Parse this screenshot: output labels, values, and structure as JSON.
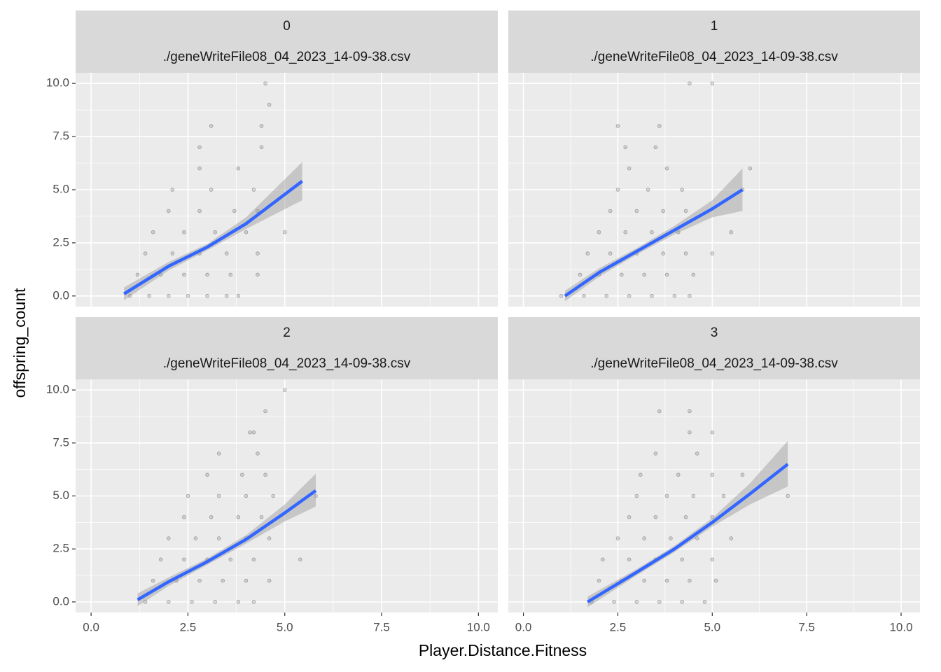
{
  "chart_data": [
    {
      "type": "scatter",
      "title": "0",
      "subtitle": "./geneWriteFile08_04_2023_14-09-38.csv",
      "xlabel": "Player.Distance.Fitness",
      "ylabel": "offspring_count",
      "xlim": [
        -0.4,
        10.5
      ],
      "ylim": [
        -0.5,
        10.5
      ],
      "xticks": [
        {
          "value": 0,
          "label": "0.0"
        },
        {
          "value": 2.5,
          "label": "2.5"
        },
        {
          "value": 5,
          "label": "5.0"
        },
        {
          "value": 7.5,
          "label": "7.5"
        },
        {
          "value": 10,
          "label": "10.0"
        }
      ],
      "yticks": [
        {
          "value": 0,
          "label": "0.0"
        },
        {
          "value": 2.5,
          "label": "2.5"
        },
        {
          "value": 5,
          "label": "5.0"
        },
        {
          "value": 7.5,
          "label": "7.5"
        },
        {
          "value": 10,
          "label": "10.0"
        }
      ],
      "grid": true,
      "points": {
        "color": "#000000",
        "x": [
          1.0,
          1.5,
          2.0,
          2.5,
          3.0,
          3.5,
          3.8,
          1.2,
          1.8,
          2.4,
          3.0,
          3.6,
          4.3,
          1.4,
          2.1,
          2.8,
          3.5,
          4.3,
          1.6,
          2.4,
          3.2,
          4.0,
          5.0,
          2.0,
          2.8,
          3.7,
          4.3,
          2.1,
          3.1,
          4.2,
          2.8,
          3.8,
          2.8,
          4.4,
          3.1,
          4.4,
          4.6,
          4.5
        ],
        "y": [
          0,
          0,
          0,
          0,
          0,
          0,
          0,
          1,
          1,
          1,
          1,
          1,
          1,
          2,
          2,
          2,
          2,
          2,
          3,
          3,
          3,
          3,
          3,
          4,
          4,
          4,
          4,
          5,
          5,
          5,
          6,
          6,
          7,
          7,
          8,
          8,
          9,
          10
        ]
      },
      "fit": {
        "color": "#3366ff",
        "band_color": "#999999",
        "x": [
          0.85,
          2,
          3,
          4,
          5.45
        ],
        "y": [
          0.1,
          1.4,
          2.3,
          3.4,
          5.4
        ],
        "lower": [
          -0.2,
          1.2,
          2.15,
          3.15,
          4.5
        ],
        "upper": [
          0.4,
          1.6,
          2.45,
          3.7,
          6.3
        ]
      }
    },
    {
      "type": "scatter",
      "title": "1",
      "subtitle": "./geneWriteFile08_04_2023_14-09-38.csv",
      "xlim": [
        -0.4,
        10.5
      ],
      "ylim": [
        -0.5,
        10.5
      ],
      "xticks": [
        {
          "value": 0,
          "label": "0.0"
        },
        {
          "value": 2.5,
          "label": "2.5"
        },
        {
          "value": 5,
          "label": "5.0"
        },
        {
          "value": 7.5,
          "label": "7.5"
        },
        {
          "value": 10,
          "label": "10.0"
        }
      ],
      "yticks": [
        {
          "value": 0,
          "label": "0.0"
        },
        {
          "value": 2.5,
          "label": "2.5"
        },
        {
          "value": 5,
          "label": "5.0"
        },
        {
          "value": 7.5,
          "label": "7.5"
        },
        {
          "value": 10,
          "label": "10.0"
        }
      ],
      "grid": true,
      "points": {
        "color": "#000000",
        "x": [
          1.0,
          1.6,
          2.2,
          2.8,
          3.4,
          4.0,
          4.4,
          1.5,
          2.0,
          2.6,
          3.2,
          3.8,
          4.5,
          1.7,
          2.3,
          3.0,
          3.7,
          4.3,
          5.0,
          2.0,
          2.7,
          3.4,
          4.1,
          5.5,
          2.3,
          3.0,
          3.7,
          4.3,
          2.5,
          3.3,
          4.2,
          5.8,
          2.8,
          3.8,
          6.0,
          2.7,
          3.5,
          2.5,
          3.6,
          4.4,
          5.0
        ],
        "y": [
          0,
          0,
          0,
          0,
          0,
          0,
          0,
          1,
          1,
          1,
          1,
          1,
          1,
          2,
          2,
          2,
          2,
          2,
          2,
          3,
          3,
          3,
          3,
          3,
          4,
          4,
          4,
          4,
          5,
          5,
          5,
          5,
          6,
          6,
          6,
          7,
          7,
          8,
          8,
          10,
          10
        ]
      },
      "fit": {
        "color": "#3366ff",
        "band_color": "#999999",
        "x": [
          1.1,
          2,
          3,
          4,
          5,
          5.8
        ],
        "y": [
          0,
          1.1,
          2.1,
          3.1,
          4.1,
          5.0
        ],
        "lower": [
          -0.25,
          0.9,
          1.95,
          2.9,
          3.7,
          4.0
        ],
        "upper": [
          0.25,
          1.3,
          2.25,
          3.3,
          4.5,
          6.0
        ]
      }
    },
    {
      "type": "scatter",
      "title": "2",
      "subtitle": "./geneWriteFile08_04_2023_14-09-38.csv",
      "xlim": [
        -0.4,
        10.5
      ],
      "ylim": [
        -0.5,
        10.5
      ],
      "xticks": [
        {
          "value": 0,
          "label": "0.0"
        },
        {
          "value": 2.5,
          "label": "2.5"
        },
        {
          "value": 5,
          "label": "5.0"
        },
        {
          "value": 7.5,
          "label": "7.5"
        },
        {
          "value": 10,
          "label": "10.0"
        }
      ],
      "yticks": [
        {
          "value": 0,
          "label": "0.0"
        },
        {
          "value": 2.5,
          "label": "2.5"
        },
        {
          "value": 5,
          "label": "5.0"
        },
        {
          "value": 7.5,
          "label": "7.5"
        },
        {
          "value": 10,
          "label": "10.0"
        }
      ],
      "grid": true,
      "points": {
        "color": "#000000",
        "x": [
          1.4,
          2.0,
          2.6,
          3.2,
          3.8,
          4.2,
          1.6,
          2.2,
          2.8,
          3.4,
          4.0,
          4.6,
          1.8,
          2.4,
          3.0,
          3.6,
          4.2,
          5.4,
          2.0,
          2.7,
          3.3,
          4.0,
          4.6,
          2.4,
          3.1,
          3.8,
          4.4,
          2.5,
          3.3,
          4.0,
          4.7,
          5.8,
          3.0,
          3.9,
          4.5,
          3.3,
          4.3,
          4.1,
          4.2,
          4.5,
          5.0
        ],
        "y": [
          0,
          0,
          0,
          0,
          0,
          0,
          1,
          1,
          1,
          1,
          1,
          1,
          2,
          2,
          2,
          2,
          2,
          2,
          3,
          3,
          3,
          3,
          3,
          4,
          4,
          4,
          4,
          5,
          5,
          5,
          5,
          5,
          6,
          6,
          6,
          7,
          7,
          8,
          8,
          9,
          10
        ]
      },
      "fit": {
        "color": "#3366ff",
        "band_color": "#999999",
        "x": [
          1.2,
          2,
          3,
          4,
          5,
          5.8
        ],
        "y": [
          0.1,
          0.95,
          1.9,
          2.95,
          4.2,
          5.25
        ],
        "lower": [
          -0.2,
          0.75,
          1.75,
          2.75,
          3.8,
          4.5
        ],
        "upper": [
          0.4,
          1.15,
          2.05,
          3.15,
          4.6,
          6.05
        ]
      }
    },
    {
      "type": "scatter",
      "title": "3",
      "subtitle": "./geneWriteFile08_04_2023_14-09-38.csv",
      "xlim": [
        -0.4,
        10.5
      ],
      "ylim": [
        -0.5,
        10.5
      ],
      "xticks": [
        {
          "value": 0,
          "label": "0.0"
        },
        {
          "value": 2.5,
          "label": "2.5"
        },
        {
          "value": 5,
          "label": "5.0"
        },
        {
          "value": 7.5,
          "label": "7.5"
        },
        {
          "value": 10,
          "label": "10.0"
        }
      ],
      "yticks": [
        {
          "value": 0,
          "label": "0.0"
        },
        {
          "value": 2.5,
          "label": "2.5"
        },
        {
          "value": 5,
          "label": "5.0"
        },
        {
          "value": 7.5,
          "label": "7.5"
        },
        {
          "value": 10,
          "label": "10.0"
        }
      ],
      "grid": true,
      "points": {
        "color": "#000000",
        "x": [
          1.8,
          2.4,
          3.0,
          3.6,
          4.2,
          4.8,
          2.0,
          2.6,
          3.2,
          3.8,
          4.4,
          5.1,
          2.1,
          2.8,
          3.5,
          4.2,
          5.0,
          2.5,
          3.2,
          3.9,
          4.6,
          5.5,
          2.8,
          3.5,
          4.3,
          5.0,
          3.0,
          3.8,
          4.5,
          5.3,
          7.0,
          3.1,
          4.1,
          5.0,
          5.8,
          3.5,
          4.6,
          4.4,
          5.0,
          3.6,
          4.4
        ],
        "y": [
          0,
          0,
          0,
          0,
          0,
          0,
          1,
          1,
          1,
          1,
          1,
          1,
          2,
          2,
          2,
          2,
          2,
          3,
          3,
          3,
          3,
          3,
          4,
          4,
          4,
          4,
          5,
          5,
          5,
          5,
          5,
          6,
          6,
          6,
          6,
          7,
          7,
          8,
          8,
          9,
          9
        ]
      },
      "fit": {
        "color": "#3366ff",
        "band_color": "#999999",
        "x": [
          1.7,
          3,
          4,
          5,
          6,
          7
        ],
        "y": [
          0,
          1.4,
          2.5,
          3.75,
          5.1,
          6.5
        ],
        "lower": [
          -0.25,
          1.25,
          2.35,
          3.55,
          4.6,
          5.45
        ],
        "upper": [
          0.25,
          1.55,
          2.65,
          3.95,
          5.6,
          7.6
        ]
      }
    }
  ]
}
